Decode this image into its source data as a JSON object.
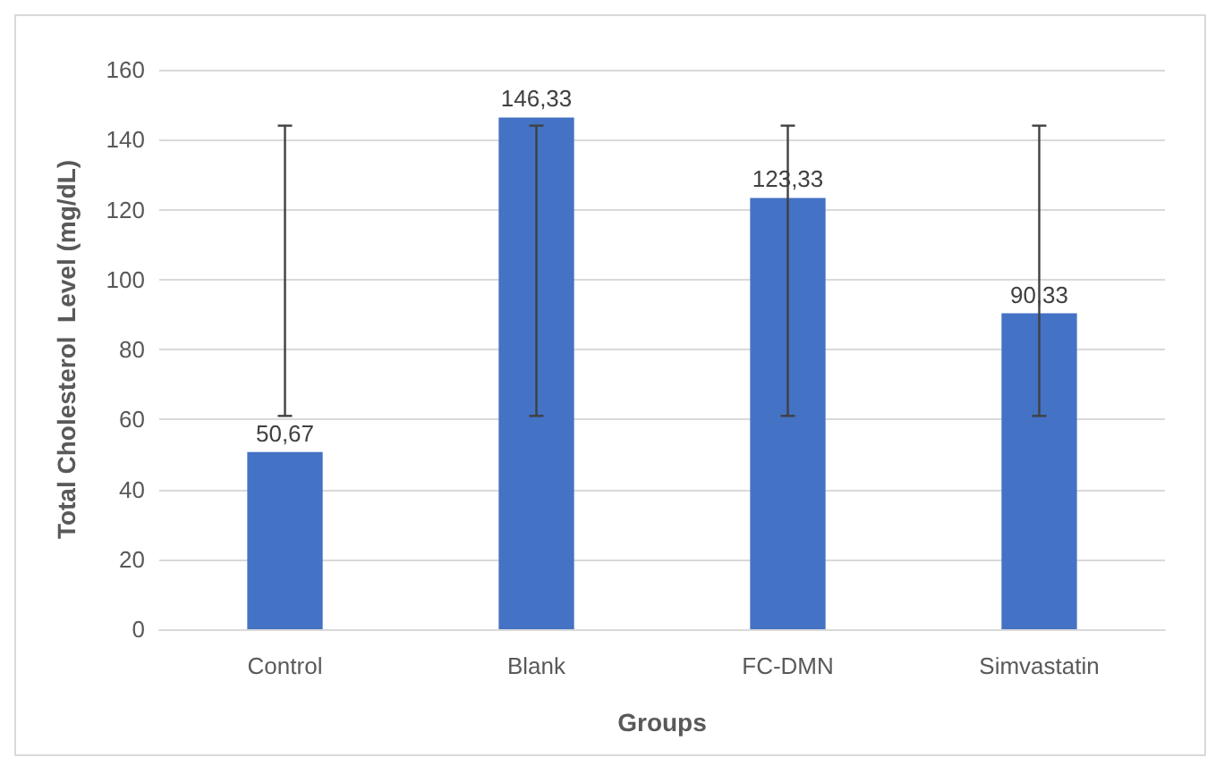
{
  "chart_data": {
    "type": "bar",
    "xlabel": "Groups",
    "ylabel": "Total Cholesterol  Level (mg/dL)",
    "categories": [
      "Control",
      "Blank",
      "FC-DMN",
      "Simvastatin"
    ],
    "values": [
      50.67,
      146.33,
      123.33,
      90.33
    ],
    "value_labels": [
      "50,67",
      "146,33",
      "123,33",
      "90,33"
    ],
    "errors": [
      [
        61,
        144
      ],
      [
        61,
        144
      ],
      [
        61,
        144
      ],
      [
        61,
        144
      ]
    ],
    "color": "#4472c4",
    "ylim": [
      0,
      160
    ],
    "yticks": [
      0,
      20,
      40,
      60,
      80,
      100,
      120,
      140,
      160
    ],
    "grid": "y"
  }
}
